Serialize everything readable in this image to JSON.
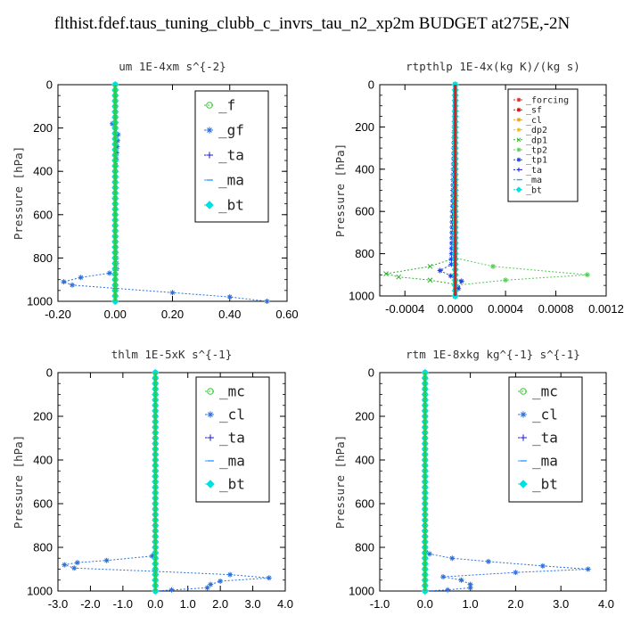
{
  "title": "flthist.fdef.taus_tuning_clubb_c_invrs_tau_n2_xp2m  BUDGET at275E,-2N",
  "chart_data": [
    {
      "type": "line",
      "title": "um   1E-4xm s^{-2}",
      "ylabel": "Pressure [hPa]",
      "xlim": [
        -0.2,
        0.6
      ],
      "ylim": [
        1000,
        0
      ],
      "xticks": [
        "-0.20",
        "0.00",
        "0.20",
        "0.40",
        "0.60"
      ],
      "xtick_values": [
        -0.2,
        0.0,
        0.2,
        0.4,
        0.6
      ],
      "yticks": [
        "0",
        "200",
        "400",
        "600",
        "800",
        "1000"
      ],
      "ytick_values": [
        0,
        200,
        400,
        600,
        800,
        1000
      ],
      "legend_position": "top-right",
      "series": [
        {
          "name": "_f",
          "color": "#33cc33",
          "marker": "circle",
          "points": [
            [
              0.0,
              0
            ],
            [
              0.0,
              100
            ],
            [
              0.0,
              200
            ],
            [
              0.0,
              300
            ],
            [
              0.0,
              400
            ],
            [
              0.0,
              500
            ],
            [
              0.0,
              600
            ],
            [
              0.0,
              700
            ],
            [
              0.0,
              800
            ],
            [
              0.0,
              900
            ],
            [
              0.0,
              1000
            ]
          ]
        },
        {
          "name": "_gf",
          "color": "#2a6fdb",
          "marker": "star",
          "points": [
            [
              0.0,
              0
            ],
            [
              0.0,
              150
            ],
            [
              -0.01,
              180
            ],
            [
              0.0,
              200
            ],
            [
              0.01,
              230
            ],
            [
              0.0,
              400
            ],
            [
              0.0,
              700
            ],
            [
              0.005,
              850
            ],
            [
              -0.02,
              870
            ],
            [
              -0.12,
              890
            ],
            [
              -0.18,
              910
            ],
            [
              -0.15,
              925
            ],
            [
              0.0,
              940
            ],
            [
              0.2,
              960
            ],
            [
              0.4,
              980
            ],
            [
              0.53,
              1000
            ]
          ]
        },
        {
          "name": "_ta",
          "color": "#1a1acc",
          "marker": "plus",
          "points": [
            [
              0.0,
              0
            ],
            [
              0.0,
              500
            ],
            [
              0.0,
              1000
            ]
          ]
        },
        {
          "name": "_ma",
          "color": "#3399ff",
          "marker": "dash",
          "points": [
            [
              0.0,
              0
            ],
            [
              0.0,
              500
            ],
            [
              0.0,
              1000
            ]
          ]
        },
        {
          "name": "_bt",
          "color": "#00e0e0",
          "marker": "diamond",
          "points": [
            [
              0.0,
              0
            ],
            [
              0.0,
              500
            ],
            [
              0.0,
              1000
            ]
          ]
        }
      ]
    },
    {
      "type": "line",
      "title": "rtpthlp   1E-4x(kg K)/(kg s)",
      "ylabel": "Pressure [hPa]",
      "xlim": [
        -0.0006,
        0.0012
      ],
      "ylim": [
        1000,
        0
      ],
      "xticks": [
        "-0.0004",
        "0.0000",
        "0.0004",
        "0.0008",
        "0.0012"
      ],
      "xtick_values": [
        -0.0004,
        0.0,
        0.0004,
        0.0008,
        0.0012
      ],
      "yticks": [
        "0",
        "200",
        "400",
        "600",
        "800",
        "1000"
      ],
      "ytick_values": [
        0,
        200,
        400,
        600,
        800,
        1000
      ],
      "legend_position": "top-right",
      "series": [
        {
          "name": "_forcing",
          "color": "#e02020",
          "marker": "star",
          "points": [
            [
              0.0,
              0
            ],
            [
              0.0,
              1000
            ]
          ]
        },
        {
          "name": "_sf",
          "color": "#d01010",
          "marker": "star",
          "points": [
            [
              0.0,
              0
            ],
            [
              0.0,
              1000
            ]
          ]
        },
        {
          "name": "_cl",
          "color": "#f0a020",
          "marker": "star",
          "points": [
            [
              0.0,
              0
            ],
            [
              0.0,
              1000
            ]
          ]
        },
        {
          "name": "_dp2",
          "color": "#e8c020",
          "marker": "star",
          "points": [
            [
              0.0,
              0
            ],
            [
              0.0,
              1000
            ]
          ]
        },
        {
          "name": "_dp1",
          "color": "#30b030",
          "marker": "x",
          "points": [
            [
              0.0,
              0
            ],
            [
              0.0,
              820
            ],
            [
              -0.0002,
              860
            ],
            [
              -0.00055,
              895
            ],
            [
              -0.00045,
              910
            ],
            [
              -0.0002,
              925
            ],
            [
              0.0,
              945
            ],
            [
              0.0,
              1000
            ]
          ]
        },
        {
          "name": "_tp2",
          "color": "#55cc55",
          "marker": "star",
          "points": [
            [
              0.0,
              0
            ],
            [
              0.0,
              820
            ],
            [
              0.0003,
              860
            ],
            [
              0.00105,
              900
            ],
            [
              0.0004,
              925
            ],
            [
              0.0,
              950
            ],
            [
              0.0,
              1000
            ]
          ]
        },
        {
          "name": "_tp1",
          "color": "#2244dd",
          "marker": "star",
          "points": [
            [
              0.0,
              0
            ],
            [
              -3e-05,
              850
            ],
            [
              -0.00012,
              880
            ],
            [
              5e-05,
              930
            ],
            [
              0.0,
              1000
            ]
          ]
        },
        {
          "name": "_ta",
          "color": "#1a1acc",
          "marker": "plus",
          "points": [
            [
              0.0,
              0
            ],
            [
              0.0,
              1000
            ]
          ]
        },
        {
          "name": "_ma",
          "color": "#3399ff",
          "marker": "dash",
          "points": [
            [
              0.0,
              0
            ],
            [
              0.0,
              1000
            ]
          ]
        },
        {
          "name": "_bt",
          "color": "#00e0e0",
          "marker": "diamond",
          "points": [
            [
              0.0,
              0
            ],
            [
              0.0,
              1000
            ]
          ]
        }
      ]
    },
    {
      "type": "line",
      "title": "thlm   1E-5xK s^{-1}",
      "ylabel": "Pressure [hPa]",
      "xlim": [
        -3.0,
        4.0
      ],
      "ylim": [
        1000,
        0
      ],
      "xticks": [
        "-3.0",
        "-2.0",
        "-1.0",
        "0.0",
        "1.0",
        "2.0",
        "3.0",
        "4.0"
      ],
      "xtick_values": [
        -3,
        -2,
        -1,
        0,
        1,
        2,
        3,
        4
      ],
      "yticks": [
        "0",
        "200",
        "400",
        "600",
        "800",
        "1000"
      ],
      "ytick_values": [
        0,
        200,
        400,
        600,
        800,
        1000
      ],
      "legend_position": "top-right",
      "series": [
        {
          "name": "_mc",
          "color": "#33cc33",
          "marker": "circle",
          "points": [
            [
              0.0,
              0
            ],
            [
              0.0,
              100
            ],
            [
              0.0,
              200
            ],
            [
              0.0,
              300
            ],
            [
              0.0,
              400
            ],
            [
              0.0,
              500
            ],
            [
              0.0,
              600
            ],
            [
              0.0,
              700
            ],
            [
              0.0,
              800
            ],
            [
              0.0,
              900
            ],
            [
              0.0,
              1000
            ]
          ]
        },
        {
          "name": "_cl",
          "color": "#2a6fdb",
          "marker": "star",
          "points": [
            [
              0.0,
              0
            ],
            [
              0.0,
              800
            ],
            [
              -0.1,
              840
            ],
            [
              -1.5,
              860
            ],
            [
              -2.4,
              870
            ],
            [
              -2.8,
              880
            ],
            [
              -2.5,
              895
            ],
            [
              0.0,
              910
            ],
            [
              2.3,
              925
            ],
            [
              3.5,
              940
            ],
            [
              2.0,
              955
            ],
            [
              1.7,
              970
            ],
            [
              1.6,
              985
            ],
            [
              0.5,
              995
            ],
            [
              0.0,
              1000
            ]
          ]
        },
        {
          "name": "_ta",
          "color": "#1a1acc",
          "marker": "plus",
          "points": [
            [
              0.0,
              0
            ],
            [
              0.0,
              1000
            ]
          ]
        },
        {
          "name": "_ma",
          "color": "#3399ff",
          "marker": "dash",
          "points": [
            [
              0.0,
              0
            ],
            [
              0.0,
              1000
            ]
          ]
        },
        {
          "name": "_bt",
          "color": "#00e0e0",
          "marker": "diamond",
          "points": [
            [
              0.0,
              0
            ],
            [
              0.0,
              1000
            ]
          ]
        }
      ]
    },
    {
      "type": "line",
      "title": "rtm   1E-8xkg kg^{-1} s^{-1}",
      "ylabel": "Pressure [hPa]",
      "xlim": [
        -1.0,
        4.0
      ],
      "ylim": [
        1000,
        0
      ],
      "xticks": [
        "-1.0",
        "0.0",
        "1.0",
        "2.0",
        "3.0",
        "4.0"
      ],
      "xtick_values": [
        -1,
        0,
        1,
        2,
        3,
        4
      ],
      "yticks": [
        "0",
        "200",
        "400",
        "600",
        "800",
        "1000"
      ],
      "ytick_values": [
        0,
        200,
        400,
        600,
        800,
        1000
      ],
      "legend_position": "top-right",
      "series": [
        {
          "name": "_mc",
          "color": "#33cc33",
          "marker": "circle",
          "points": [
            [
              0.0,
              0
            ],
            [
              0.0,
              100
            ],
            [
              0.0,
              200
            ],
            [
              0.0,
              300
            ],
            [
              0.0,
              400
            ],
            [
              0.0,
              500
            ],
            [
              0.0,
              600
            ],
            [
              0.0,
              700
            ],
            [
              0.0,
              800
            ],
            [
              0.0,
              900
            ],
            [
              0.0,
              1000
            ]
          ]
        },
        {
          "name": "_cl",
          "color": "#2a6fdb",
          "marker": "star",
          "points": [
            [
              0.0,
              0
            ],
            [
              0.0,
              800
            ],
            [
              0.1,
              830
            ],
            [
              0.6,
              850
            ],
            [
              1.4,
              865
            ],
            [
              2.6,
              885
            ],
            [
              3.6,
              900
            ],
            [
              2.0,
              915
            ],
            [
              0.4,
              935
            ],
            [
              0.8,
              950
            ],
            [
              1.0,
              970
            ],
            [
              1.0,
              985
            ],
            [
              0.5,
              995
            ],
            [
              0.0,
              1000
            ]
          ]
        },
        {
          "name": "_ta",
          "color": "#1a1acc",
          "marker": "plus",
          "points": [
            [
              0.0,
              0
            ],
            [
              0.0,
              1000
            ]
          ]
        },
        {
          "name": "_ma",
          "color": "#3399ff",
          "marker": "dash",
          "points": [
            [
              0.0,
              0
            ],
            [
              0.0,
              1000
            ]
          ]
        },
        {
          "name": "_bt",
          "color": "#00e0e0",
          "marker": "diamond",
          "points": [
            [
              0.0,
              0
            ],
            [
              0.0,
              1000
            ]
          ]
        }
      ]
    }
  ]
}
